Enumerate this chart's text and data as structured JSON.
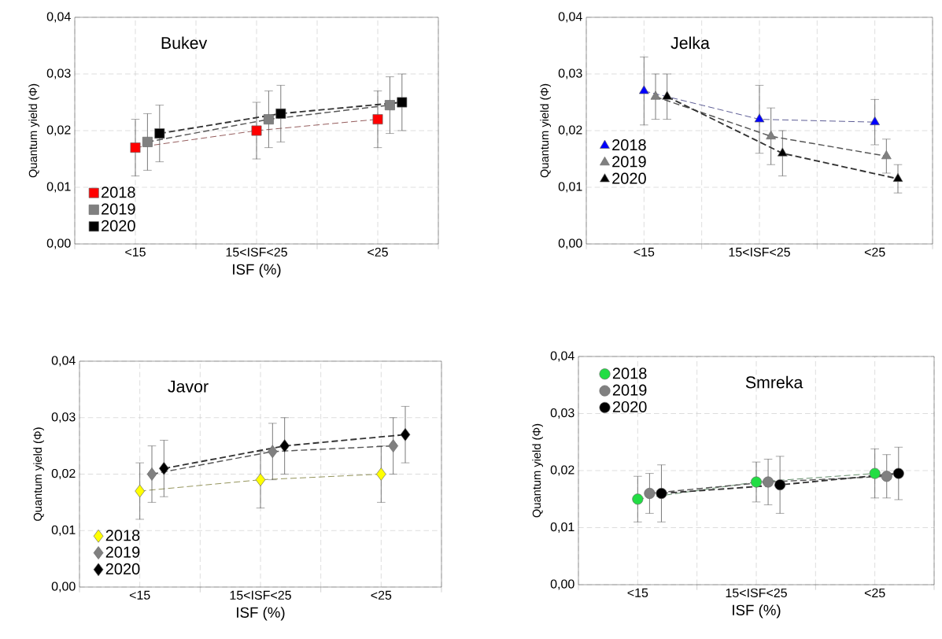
{
  "chart_data": [
    {
      "type": "line",
      "title": "Bukev",
      "xlabel": "ISF (%)",
      "ylabel": "Quantum yield (Φ)",
      "categories": [
        "<15",
        "15<ISF<25",
        "<25"
      ],
      "ylim": [
        0,
        0.04
      ],
      "yticks": [
        {
          "value": 0,
          "label": "0,00"
        },
        {
          "value": 0.01,
          "label": "0,01"
        },
        {
          "value": 0.02,
          "label": "0,02"
        },
        {
          "value": 0.03,
          "label": "0,03"
        },
        {
          "value": 0.04,
          "label": "0,04"
        }
      ],
      "grid": true,
      "legend": "bottom left",
      "marker": "square",
      "line_style": "dashed",
      "series": [
        {
          "name": "2018",
          "color": "#ff0000",
          "values": [
            0.017,
            0.02,
            0.022
          ],
          "errors": [
            0.005,
            0.005,
            0.005
          ]
        },
        {
          "name": "2019",
          "color": "#808080",
          "values": [
            0.018,
            0.022,
            0.0245
          ],
          "errors": [
            0.005,
            0.005,
            0.005
          ]
        },
        {
          "name": "2020",
          "color": "#000000",
          "values": [
            0.0195,
            0.023,
            0.025
          ],
          "errors": [
            0.005,
            0.005,
            0.005
          ]
        }
      ]
    },
    {
      "type": "line",
      "title": "Jelka",
      "ylabel": "Quantum yield (Φ)",
      "categories": [
        "<15",
        "15<ISF<25",
        "<25"
      ],
      "ylim": [
        0,
        0.04
      ],
      "yticks": [
        {
          "value": 0,
          "label": "0,00"
        },
        {
          "value": 0.01,
          "label": "0,01"
        },
        {
          "value": 0.02,
          "label": "0,02"
        },
        {
          "value": 0.03,
          "label": "0,03"
        },
        {
          "value": 0.04,
          "label": "0,04"
        }
      ],
      "grid": true,
      "legend": "left",
      "marker": "triangle",
      "line_style": "dashed",
      "series": [
        {
          "name": "2018",
          "color": "#0000ff",
          "values": [
            0.027,
            0.022,
            0.0215
          ],
          "errors": [
            0.006,
            0.006,
            0.004
          ]
        },
        {
          "name": "2019",
          "color": "#808080",
          "values": [
            0.026,
            0.019,
            0.0155
          ],
          "errors": [
            0.004,
            0.005,
            0.003
          ]
        },
        {
          "name": "2020",
          "color": "#000000",
          "values": [
            0.026,
            0.016,
            0.0115
          ],
          "errors": [
            0.004,
            0.004,
            0.0025
          ]
        }
      ]
    },
    {
      "type": "line",
      "title": "Javor",
      "xlabel": "ISF (%)",
      "ylabel": "Quantum yield (Φ)",
      "categories": [
        "<15",
        "15<ISF<25",
        "<25"
      ],
      "ylim": [
        0,
        0.04
      ],
      "yticks": [
        {
          "value": 0,
          "label": "0,00"
        },
        {
          "value": 0.01,
          "label": "0,01"
        },
        {
          "value": 0.02,
          "label": "0,02"
        },
        {
          "value": 0.03,
          "label": "0,03"
        },
        {
          "value": 0.04,
          "label": "0,04"
        }
      ],
      "grid": true,
      "legend": "bottom left",
      "marker": "diamond",
      "line_style": "dashed",
      "series": [
        {
          "name": "2018",
          "color": "#ffff00",
          "values": [
            0.017,
            0.019,
            0.02
          ],
          "errors": [
            0.005,
            0.005,
            0.005
          ]
        },
        {
          "name": "2019",
          "color": "#808080",
          "values": [
            0.02,
            0.024,
            0.025
          ],
          "errors": [
            0.005,
            0.005,
            0.005
          ]
        },
        {
          "name": "2020",
          "color": "#000000",
          "values": [
            0.021,
            0.025,
            0.027
          ],
          "errors": [
            0.005,
            0.005,
            0.005
          ]
        }
      ]
    },
    {
      "type": "line",
      "title": "Smreka",
      "xlabel": "ISF (%)",
      "ylabel": "Quantum yield (Φ)",
      "categories": [
        "<15",
        "15<ISF<25",
        "<25"
      ],
      "ylim": [
        0,
        0.04
      ],
      "yticks": [
        {
          "value": 0,
          "label": "0,00"
        },
        {
          "value": 0.01,
          "label": "0,01"
        },
        {
          "value": 0.02,
          "label": "0,02"
        },
        {
          "value": 0.03,
          "label": "0,03"
        },
        {
          "value": 0.04,
          "label": "0,04"
        }
      ],
      "grid": true,
      "legend": "top left",
      "marker": "circle",
      "line_style": "dashed",
      "series": [
        {
          "name": "2018",
          "color": "#22dd44",
          "values": [
            0.015,
            0.018,
            0.0195
          ],
          "errors": [
            0.004,
            0.0035,
            0.0043
          ]
        },
        {
          "name": "2019",
          "color": "#808080",
          "values": [
            0.016,
            0.018,
            0.019
          ],
          "errors": [
            0.0035,
            0.004,
            0.0038
          ]
        },
        {
          "name": "2020",
          "color": "#000000",
          "values": [
            0.016,
            0.0175,
            0.0195
          ],
          "errors": [
            0.005,
            0.005,
            0.0046
          ]
        }
      ]
    }
  ]
}
